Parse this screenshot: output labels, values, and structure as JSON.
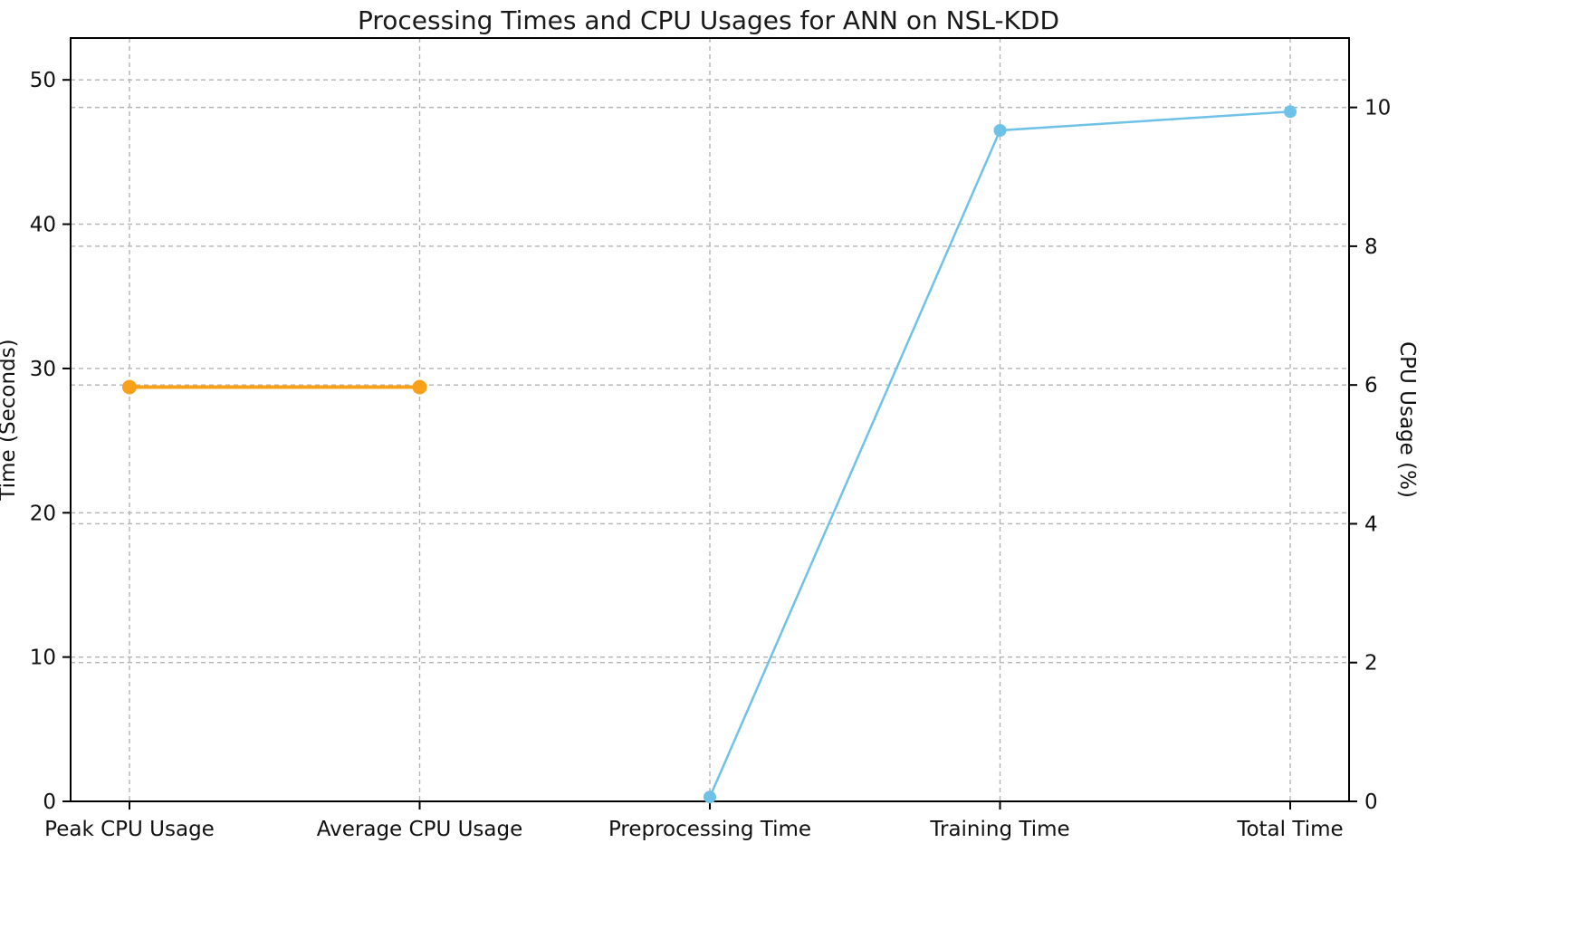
{
  "title": "Processing Times and CPU Usages for ANN on NSL-KDD",
  "chart_data": {
    "type": "line",
    "title": "Processing Times and CPU Usages for ANN on NSL-KDD",
    "categories": [
      "Peak CPU Usage",
      "Average CPU Usage",
      "Preprocessing Time",
      "Training Time",
      "Total Time"
    ],
    "series": [
      {
        "name": "CPU Usage (%)",
        "axis": "right",
        "color": "#F9A01B",
        "line_width": 4,
        "marker_radius": 8,
        "values": [
          5.97,
          5.97,
          null,
          null,
          null
        ]
      },
      {
        "name": "Time (Seconds)",
        "axis": "left",
        "color": "#6FC2E7",
        "line_width": 2.5,
        "marker_radius": 7,
        "values": [
          null,
          null,
          0.3,
          46.5,
          47.8
        ]
      }
    ],
    "left_axis": {
      "label": "Time (Seconds)",
      "ticks": [
        0,
        10,
        20,
        30,
        40,
        50
      ],
      "min": 0,
      "max": 52.9
    },
    "right_axis": {
      "label": "CPU Usage (%)",
      "ticks": [
        0,
        2,
        4,
        6,
        8,
        10
      ],
      "min": 0,
      "max": 11.0
    },
    "grid": {
      "on": true,
      "style": "dashed",
      "color": "#b3b3b3"
    },
    "legend_position": "none"
  }
}
